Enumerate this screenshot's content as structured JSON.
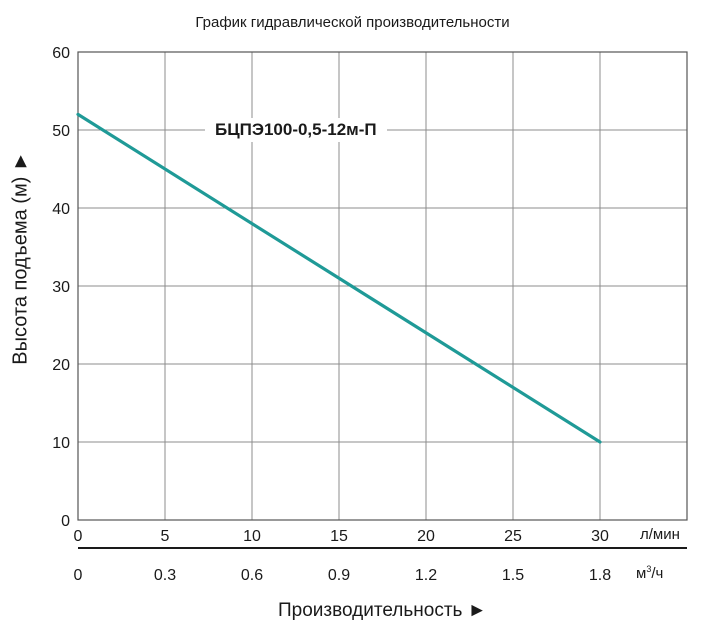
{
  "chart_data": {
    "type": "line",
    "title": "График гидравлической производительности",
    "xlabel": "Производительность ►",
    "ylabel": "Высота подъема (м) ►",
    "x_unit_primary": "л/мин",
    "x_unit_secondary": "м",
    "x_unit_secondary_power": "3",
    "x_unit_secondary_tail": "/ч",
    "xlim": [
      0,
      35
    ],
    "ylim": [
      0,
      60
    ],
    "x_ticks": [
      "0",
      "5",
      "10",
      "15",
      "20",
      "25",
      "30"
    ],
    "x_ticks_secondary": [
      "0",
      "0.3",
      "0.6",
      "0.9",
      "1.2",
      "1.5",
      "1.8"
    ],
    "y_ticks": [
      "0",
      "10",
      "20",
      "30",
      "40",
      "50",
      "60"
    ],
    "grid": true,
    "series": [
      {
        "name": "БЦПЭ100-0,5-12м-П",
        "color": "#1f9a97",
        "x": [
          0,
          30
        ],
        "y": [
          52,
          10
        ]
      }
    ]
  }
}
